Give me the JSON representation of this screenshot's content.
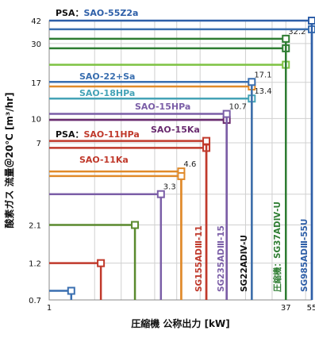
{
  "chart_data": {
    "type": "line",
    "xlabel": "圧縮機 公称出力 [kW]",
    "ylabel": "酸素ガス 流量＠20℃ [m³/hr]",
    "x_scale": "log",
    "y_scale": "log",
    "xlim": [
      1,
      55
    ],
    "ylim": [
      0.7,
      42
    ],
    "x_ticks": [
      1,
      2,
      3,
      5,
      7,
      10,
      20,
      30,
      37,
      50,
      55
    ],
    "x_tick_labels": [
      "1",
      "",
      "",
      "",
      "",
      "",
      "",
      "",
      "37",
      "",
      "55"
    ],
    "y_ticks": [
      0.7,
      1.2,
      2.1,
      3.3,
      7,
      10,
      17,
      30,
      42
    ],
    "y_tick_labels": [
      "0.7",
      "1.2",
      "2.1",
      "",
      "7",
      "10",
      "17",
      "30",
      "42"
    ],
    "grid": true,
    "series": [
      {
        "power": 1.4,
        "flow": 0.8,
        "color": "#3a6fb0",
        "series": "",
        "flow_label": ""
      },
      {
        "power": 2.2,
        "flow": 1.2,
        "color": "#c0392b",
        "series": "",
        "flow_label": ""
      },
      {
        "power": 3.7,
        "flow": 2.1,
        "color": "#5a8a2e",
        "series": "",
        "flow_label": ""
      },
      {
        "power": 5.5,
        "flow": 3.3,
        "color": "#7b5ea7",
        "series": "",
        "flow_label": "3.3"
      },
      {
        "power": 7.5,
        "flow": 4.6,
        "color": "#e08a2a",
        "series": "",
        "flow_label": "4.6"
      },
      {
        "power": 7.5,
        "flow": 4.3,
        "color": "#e08a2a",
        "series": "",
        "flow_label": ""
      },
      {
        "power": 11,
        "flow": 6.5,
        "color": "#c0392b",
        "series": "SAO-11Ka",
        "flow_label": ""
      },
      {
        "power": 11,
        "flow": 7.2,
        "color": "#c0392b",
        "series": "",
        "flow_label": ""
      },
      {
        "power": 15,
        "flow": 9.8,
        "color": "#6a2c70",
        "series": "SAO-15Ka",
        "flow_label": ""
      },
      {
        "power": 15,
        "flow": 10.7,
        "color": "#7b5ea7",
        "series": "SAO-15HPa",
        "flow_label": "10.7"
      },
      {
        "power": 22,
        "flow": 13.4,
        "color": "#45a3b7",
        "series": "SAO-18HPa",
        "flow_label": "13.4"
      },
      {
        "power": 22,
        "flow": 16.0,
        "color": "#e08a2a",
        "series": "",
        "flow_label": ""
      },
      {
        "power": 22,
        "flow": 17.1,
        "color": "#3a6fb0",
        "series": "SAO-22+Sa",
        "flow_label": "17.1"
      },
      {
        "power": 37,
        "flow": 22.0,
        "color": "#7dc242",
        "series": "",
        "flow_label": ""
      },
      {
        "power": 37,
        "flow": 28.0,
        "color": "#2e7d32",
        "series": "",
        "flow_label": ""
      },
      {
        "power": 37,
        "flow": 32.2,
        "color": "#2e7d32",
        "series": "",
        "flow_label": "32.2"
      },
      {
        "power": 55,
        "flow": 37.0,
        "color": "#3a6fb0",
        "series": "",
        "flow_label": ""
      },
      {
        "power": 55,
        "flow": 42.0,
        "color": "#2e5fa8",
        "series": "SAO-55Z2a",
        "flow_label": ""
      }
    ],
    "annotations": [
      {
        "text_prefix": "PSA：",
        "text": "SAO-55Z2a",
        "color": "#2e5fa8"
      },
      {
        "text": "SAO-22+Sa",
        "color": "#3a6fb0"
      },
      {
        "text": "SAO-18HPa",
        "color": "#45a3b7"
      },
      {
        "text": "SAO-15HPa",
        "color": "#7b5ea7"
      },
      {
        "text_prefix": "PSA：",
        "text": "SAO-11HPa",
        "color": "#c0392b"
      },
      {
        "text": "SAO-15Ka",
        "color": "#6a2c70"
      },
      {
        "text": "SAO-11Ka",
        "color": "#c0392b"
      }
    ],
    "model_labels": [
      {
        "text": "SG155ADⅢ-11",
        "color": "#c0392b"
      },
      {
        "text": "SG235ADⅢ-15",
        "color": "#7b5ea7"
      },
      {
        "text": "SG22ADⅣ-U",
        "color": "#111111"
      },
      {
        "text": "圧縮機：SG37ADⅣ-U",
        "color": "#2e7d32"
      },
      {
        "text": "SG985ADⅢ-55U",
        "color": "#2e5fa8"
      }
    ]
  },
  "colors": {
    "grid": "#d0d0d0",
    "axis": "#888888",
    "tick_37": "#2e7d32",
    "tick_55": "#2e5fa8"
  }
}
